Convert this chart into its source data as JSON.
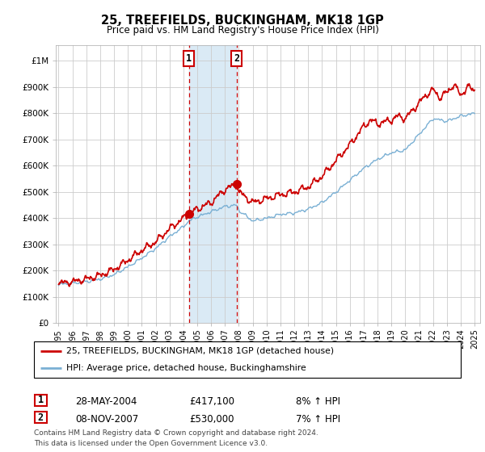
{
  "title": "25, TREEFIELDS, BUCKINGHAM, MK18 1GP",
  "subtitle": "Price paid vs. HM Land Registry's House Price Index (HPI)",
  "ylabel_ticks": [
    "£0",
    "£100K",
    "£200K",
    "£300K",
    "£400K",
    "£500K",
    "£600K",
    "£700K",
    "£800K",
    "£900K",
    "£1M"
  ],
  "ytick_vals": [
    0,
    100000,
    200000,
    300000,
    400000,
    500000,
    600000,
    700000,
    800000,
    900000,
    1000000
  ],
  "ylim": [
    0,
    1060000
  ],
  "xlim_start": 1994.8,
  "xlim_end": 2025.4,
  "sale1_year": 2004.4,
  "sale1_price": 417100,
  "sale1_date": "28-MAY-2004",
  "sale1_hpi_text": "8% ↑ HPI",
  "sale2_year": 2007.85,
  "sale2_price": 530000,
  "sale2_date": "08-NOV-2007",
  "sale2_hpi_text": "7% ↑ HPI",
  "legend_line1": "25, TREEFIELDS, BUCKINGHAM, MK18 1GP (detached house)",
  "legend_line2": "HPI: Average price, detached house, Buckinghamshire",
  "footer_line1": "Contains HM Land Registry data © Crown copyright and database right 2024.",
  "footer_line2": "This data is licensed under the Open Government Licence v3.0.",
  "red_color": "#cc0000",
  "blue_color": "#7ab0d4",
  "shade_color": "#daeaf5",
  "grid_color": "#cccccc",
  "bg_color": "#ffffff"
}
